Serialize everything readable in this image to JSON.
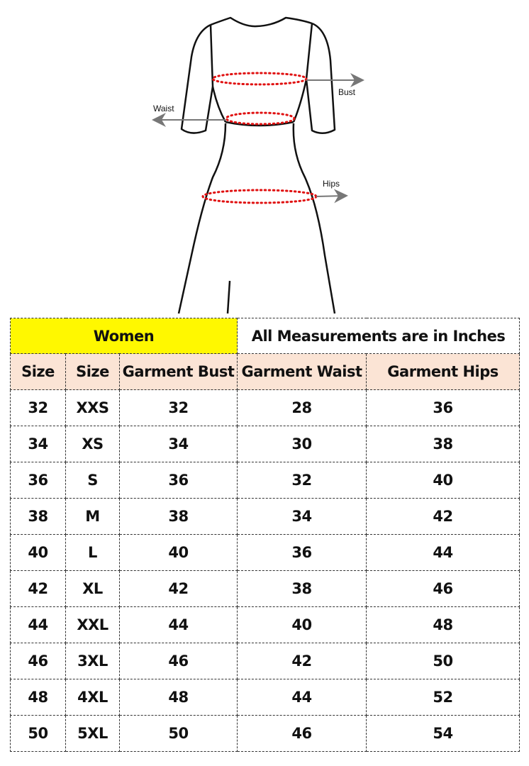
{
  "diagram": {
    "labels": {
      "bust": "Bust",
      "waist": "Waist",
      "hips": "Hips"
    },
    "colors": {
      "outline": "#111111",
      "measure_dots": "#e01010",
      "arrow": "#777777"
    }
  },
  "table": {
    "banner": {
      "category": "Women",
      "note": "All Measurements are in Inches"
    },
    "headers": [
      "Size",
      "Size",
      "Garment Bust",
      "Garment Waist",
      "Garment Hips"
    ],
    "rows": [
      [
        "32",
        "XXS",
        "32",
        "28",
        "36"
      ],
      [
        "34",
        "XS",
        "34",
        "30",
        "38"
      ],
      [
        "36",
        "S",
        "36",
        "32",
        "40"
      ],
      [
        "38",
        "M",
        "38",
        "34",
        "42"
      ],
      [
        "40",
        "L",
        "40",
        "36",
        "44"
      ],
      [
        "42",
        "XL",
        "42",
        "38",
        "46"
      ],
      [
        "44",
        "XXL",
        "44",
        "40",
        "48"
      ],
      [
        "46",
        "3XL",
        "46",
        "42",
        "50"
      ],
      [
        "48",
        "4XL",
        "48",
        "44",
        "52"
      ],
      [
        "50",
        "5XL",
        "50",
        "46",
        "54"
      ]
    ],
    "colors": {
      "banner_highlight": "#fff800",
      "header_bg": "#fbe4d5"
    }
  }
}
